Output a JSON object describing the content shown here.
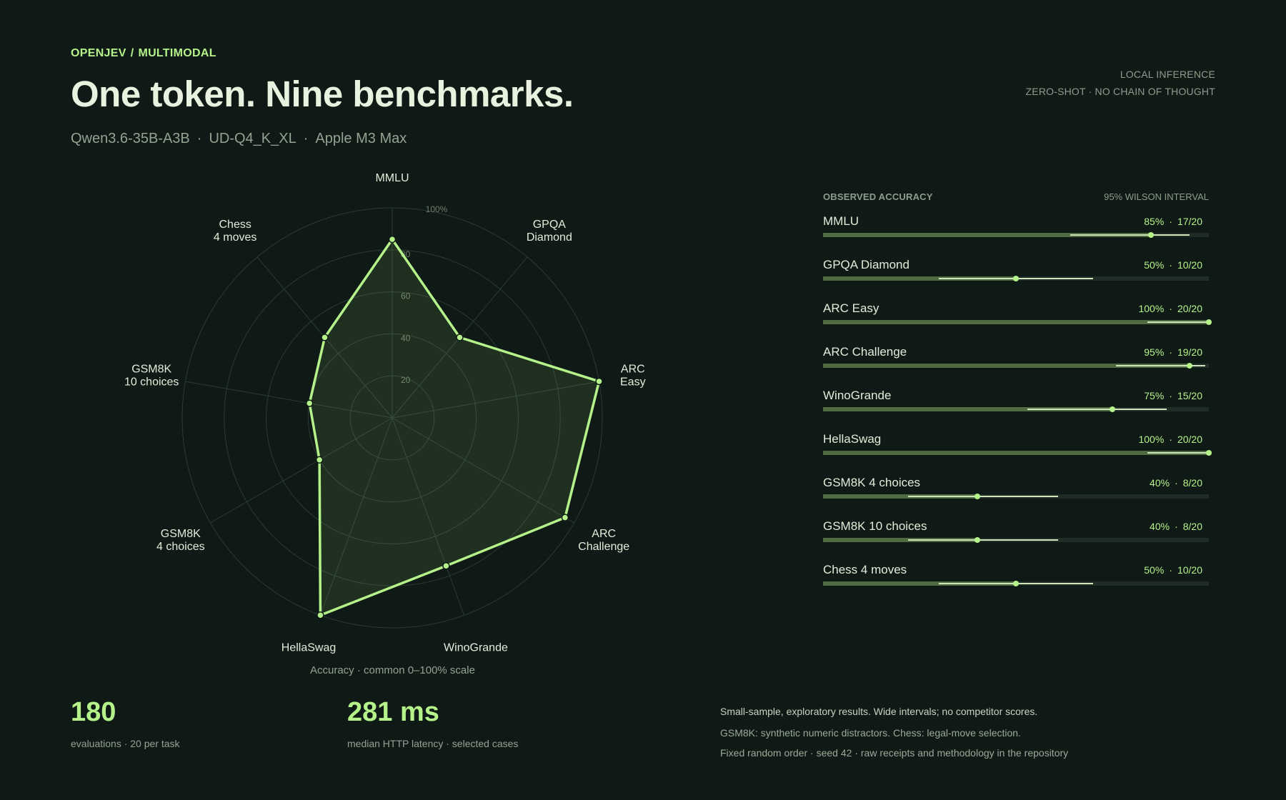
{
  "header": {
    "breadcrumb": [
      "OPENJEV",
      "MULTIMODAL"
    ],
    "breadcrumb_sep": "/",
    "title": "One token. Nine benchmarks.",
    "subtitle": [
      "Qwen3.6-35B-A3B",
      "UD-Q4_K_XL",
      "Apple M3 Max"
    ],
    "subtitle_sep": "·",
    "right_lines": [
      "LOCAL INFERENCE",
      "ZERO-SHOT · NO CHAIN OF THOUGHT"
    ]
  },
  "colors": {
    "background": "#0f1a16",
    "accent": "#b5f28a",
    "bar_fill": "#4f6b3f",
    "bar_track": "#1f2d26",
    "grid": "#2c3a33"
  },
  "chart_data": [
    {
      "type": "radar",
      "axes": [
        {
          "label": [
            "MMLU"
          ],
          "value": 85
        },
        {
          "label": [
            "GPQA",
            "Diamond"
          ],
          "value": 50
        },
        {
          "label": [
            "ARC",
            "Easy"
          ],
          "value": 100
        },
        {
          "label": [
            "ARC",
            "Challenge"
          ],
          "value": 95
        },
        {
          "label": [
            "WinoGrande"
          ],
          "value": 75
        },
        {
          "label": [
            "HellaSwag"
          ],
          "value": 100
        },
        {
          "label": [
            "GSM8K",
            "4 choices"
          ],
          "value": 40
        },
        {
          "label": [
            "GSM8K",
            "10 choices"
          ],
          "value": 40
        },
        {
          "label": [
            "Chess",
            "4 moves"
          ],
          "value": 50
        }
      ],
      "range": [
        0,
        100
      ],
      "rings": [
        20,
        40,
        60,
        80,
        100
      ],
      "ring_labels": [
        "20",
        "40",
        "60",
        "80",
        "100%"
      ],
      "caption": "Accuracy · common 0–100% scale"
    },
    {
      "type": "bar",
      "title": "OBSERVED ACCURACY",
      "interval_label": "95% WILSON INTERVAL",
      "rows": [
        {
          "name": "MMLU",
          "pct": "85%",
          "count": "17/20",
          "value": 85,
          "ci": [
            64,
            95
          ]
        },
        {
          "name": "GPQA Diamond",
          "pct": "50%",
          "count": "10/20",
          "value": 50,
          "ci": [
            30,
            70
          ]
        },
        {
          "name": "ARC Easy",
          "pct": "100%",
          "count": "20/20",
          "value": 100,
          "ci": [
            84,
            100
          ]
        },
        {
          "name": "ARC Challenge",
          "pct": "95%",
          "count": "19/20",
          "value": 95,
          "ci": [
            76,
            99
          ]
        },
        {
          "name": "WinoGrande",
          "pct": "75%",
          "count": "15/20",
          "value": 75,
          "ci": [
            53,
            89
          ]
        },
        {
          "name": "HellaSwag",
          "pct": "100%",
          "count": "20/20",
          "value": 100,
          "ci": [
            84,
            100
          ]
        },
        {
          "name": "GSM8K 4 choices",
          "pct": "40%",
          "count": "8/20",
          "value": 40,
          "ci": [
            22,
            61
          ]
        },
        {
          "name": "GSM8K 10 choices",
          "pct": "40%",
          "count": "8/20",
          "value": 40,
          "ci": [
            22,
            61
          ]
        },
        {
          "name": "Chess 4 moves",
          "pct": "50%",
          "count": "10/20",
          "value": 50,
          "ci": [
            30,
            70
          ]
        }
      ]
    }
  ],
  "stats": [
    {
      "value": "180",
      "label": "evaluations · 20 per task"
    },
    {
      "value": "281 ms",
      "label": "median HTTP latency · selected cases"
    }
  ],
  "notes": {
    "main": "Small-sample, exploratory results. Wide intervals; no competitor scores.",
    "lines": [
      "GSM8K: synthetic numeric distractors. Chess: legal-move selection.",
      "Fixed random order · seed 42 · raw receipts and methodology in the repository"
    ]
  }
}
